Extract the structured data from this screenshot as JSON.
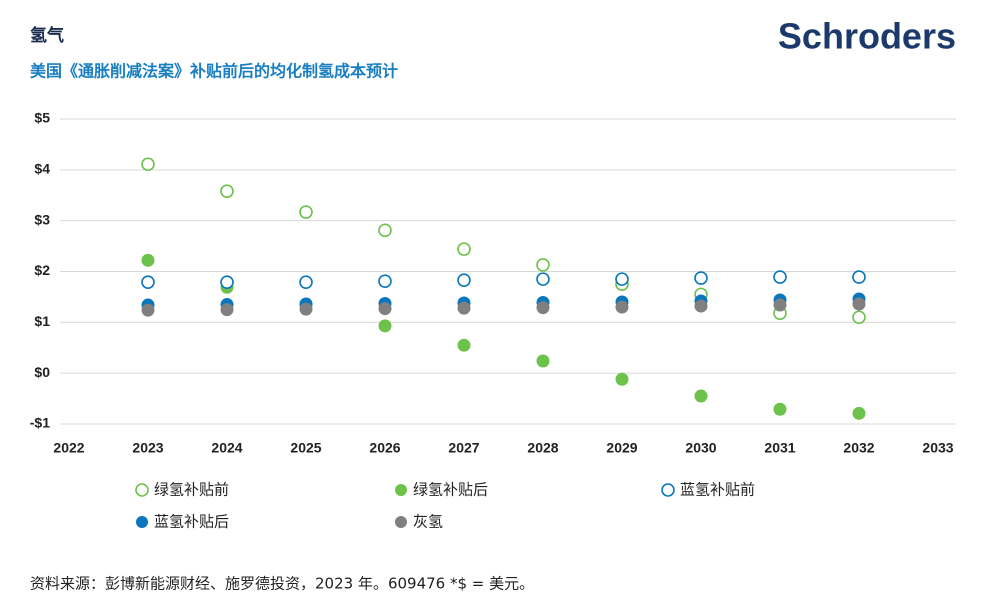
{
  "header": {
    "title": "氢气",
    "subtitle": "美国《通胀削减法案》补贴前后的均化制氢成本预计",
    "logo": "Schroders"
  },
  "chart_data": {
    "type": "scatter",
    "x": [
      2023,
      2024,
      2025,
      2026,
      2027,
      2028,
      2029,
      2030,
      2031,
      2032
    ],
    "xlim": [
      2022,
      2033
    ],
    "xticks": [
      2022,
      2023,
      2024,
      2025,
      2026,
      2027,
      2028,
      2029,
      2030,
      2031,
      2032,
      2033
    ],
    "ylim": [
      -1,
      5
    ],
    "yticks": [
      {
        "value": -1,
        "label": "-$1"
      },
      {
        "value": 0,
        "label": "$0"
      },
      {
        "value": 1,
        "label": "$1"
      },
      {
        "value": 2,
        "label": "$2"
      },
      {
        "value": 3,
        "label": "$3"
      },
      {
        "value": 4,
        "label": "$4"
      },
      {
        "value": 5,
        "label": "$5"
      }
    ],
    "grid": true,
    "series": [
      {
        "name": "绿氢补贴前",
        "color": "#6cc24a",
        "marker": "open",
        "values": [
          4.11,
          3.58,
          3.17,
          2.81,
          2.44,
          2.13,
          1.75,
          1.55,
          1.18,
          1.1
        ]
      },
      {
        "name": "绿氢补贴后",
        "color": "#6cc24a",
        "marker": "filled",
        "values": [
          2.22,
          1.69,
          1.35,
          0.93,
          0.55,
          0.24,
          -0.12,
          -0.45,
          -0.71,
          -0.79
        ]
      },
      {
        "name": "蓝氢补贴前",
        "color": "#0a77bd",
        "marker": "open",
        "values": [
          1.79,
          1.79,
          1.79,
          1.81,
          1.83,
          1.85,
          1.85,
          1.87,
          1.89,
          1.89
        ]
      },
      {
        "name": "蓝氢补贴后",
        "color": "#0a77bd",
        "marker": "filled",
        "values": [
          1.34,
          1.35,
          1.36,
          1.37,
          1.38,
          1.39,
          1.4,
          1.42,
          1.44,
          1.46
        ]
      },
      {
        "name": "灰氢",
        "color": "#808080",
        "marker": "filled",
        "values": [
          1.24,
          1.25,
          1.26,
          1.27,
          1.28,
          1.29,
          1.3,
          1.32,
          1.34,
          1.36
        ]
      }
    ]
  },
  "footer": {
    "source": "资料来源：彭博新能源财经、施罗德投资，2023 年。609476 *$ = 美元。"
  }
}
